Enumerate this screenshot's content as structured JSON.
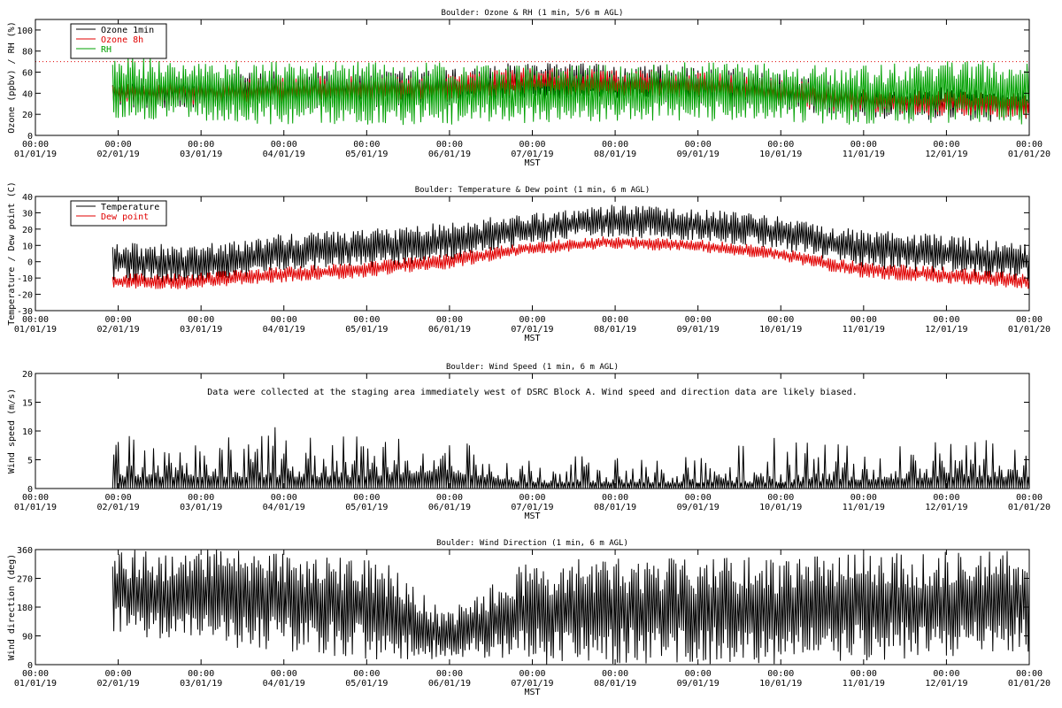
{
  "chart_data": [
    {
      "type": "line",
      "title": "Boulder: Ozone & RH (1 min, 5/6 m AGL)",
      "xlabel": "MST",
      "ylabel": "Ozone (ppbv) / RH (%)",
      "ylim": [
        0,
        110
      ],
      "yticks": [
        0,
        20,
        40,
        60,
        80,
        100
      ],
      "xlim": [
        "01/01/19",
        "01/01/20"
      ],
      "x_tick_labels": [
        [
          "00:00",
          "01/01/19"
        ],
        [
          "00:00",
          "02/01/19"
        ],
        [
          "00:00",
          "03/01/19"
        ],
        [
          "00:00",
          "04/01/19"
        ],
        [
          "00:00",
          "05/01/19"
        ],
        [
          "00:00",
          "06/01/19"
        ],
        [
          "00:00",
          "07/01/19"
        ],
        [
          "00:00",
          "08/01/19"
        ],
        [
          "00:00",
          "09/01/19"
        ],
        [
          "00:00",
          "10/01/19"
        ],
        [
          "00:00",
          "11/01/19"
        ],
        [
          "00:00",
          "12/01/19"
        ],
        [
          "00:00",
          "01/01/20"
        ]
      ],
      "reference_line": {
        "y": 70,
        "style": "dotted",
        "color": "#e00000"
      },
      "legend": {
        "position": "top-left"
      },
      "series": [
        {
          "name": "Ozone 1min",
          "color": "#000000",
          "x": [
            "01/31/19",
            "02/28/19",
            "03/31/19",
            "04/30/19",
            "05/31/19",
            "06/30/19",
            "07/31/19",
            "08/31/19",
            "09/30/19",
            "10/31/19",
            "11/30/19",
            "12/31/19"
          ],
          "y": [
            40,
            41,
            43,
            44,
            45,
            52,
            50,
            48,
            42,
            32,
            30,
            28
          ],
          "spread": [
            14,
            16,
            18,
            18,
            18,
            18,
            18,
            18,
            18,
            16,
            16,
            16
          ]
        },
        {
          "name": "Ozone 8h",
          "color": "#e00000",
          "x": [
            "01/31/19",
            "02/28/19",
            "03/31/19",
            "04/30/19",
            "05/31/19",
            "06/30/19",
            "07/31/19",
            "08/31/19",
            "09/30/19",
            "10/31/19",
            "11/30/19",
            "12/31/19"
          ],
          "y": [
            40,
            41,
            43,
            44,
            45,
            52,
            50,
            48,
            42,
            32,
            30,
            28
          ],
          "spread": [
            10,
            12,
            13,
            13,
            13,
            13,
            13,
            13,
            13,
            12,
            12,
            12
          ]
        },
        {
          "name": "RH",
          "color": "#00a000",
          "x": [
            "01/31/19",
            "02/28/19",
            "03/31/19",
            "04/30/19",
            "05/31/19",
            "06/30/19",
            "07/31/19",
            "08/31/19",
            "09/30/19",
            "10/31/19",
            "11/30/19",
            "12/31/19"
          ],
          "y": [
            45,
            43,
            40,
            40,
            40,
            38,
            40,
            42,
            40,
            38,
            42,
            40
          ],
          "spread": [
            30,
            30,
            30,
            30,
            30,
            28,
            28,
            28,
            28,
            28,
            30,
            30
          ]
        }
      ]
    },
    {
      "type": "line",
      "title": "Boulder: Temperature & Dew point (1 min, 6 m AGL)",
      "xlabel": "MST",
      "ylabel": "Temperature / Dew point (C)",
      "ylim": [
        -30,
        40
      ],
      "yticks": [
        -30,
        -20,
        -10,
        0,
        10,
        20,
        30,
        40
      ],
      "xlim": [
        "01/01/19",
        "01/01/20"
      ],
      "x_tick_labels": [
        [
          "00:00",
          "01/01/19"
        ],
        [
          "00:00",
          "02/01/19"
        ],
        [
          "00:00",
          "03/01/19"
        ],
        [
          "00:00",
          "04/01/19"
        ],
        [
          "00:00",
          "05/01/19"
        ],
        [
          "00:00",
          "06/01/19"
        ],
        [
          "00:00",
          "07/01/19"
        ],
        [
          "00:00",
          "08/01/19"
        ],
        [
          "00:00",
          "09/01/19"
        ],
        [
          "00:00",
          "10/01/19"
        ],
        [
          "00:00",
          "11/01/19"
        ],
        [
          "00:00",
          "12/01/19"
        ],
        [
          "00:00",
          "01/01/20"
        ]
      ],
      "legend": {
        "position": "top-left"
      },
      "series": [
        {
          "name": "Temperature",
          "color": "#000000",
          "x": [
            "01/31/19",
            "02/28/19",
            "03/31/19",
            "04/30/19",
            "05/31/19",
            "06/30/19",
            "07/31/19",
            "08/31/19",
            "09/30/19",
            "10/31/19",
            "11/30/19",
            "12/31/19"
          ],
          "y": [
            0,
            -2,
            5,
            8,
            12,
            20,
            25,
            23,
            18,
            8,
            5,
            0
          ],
          "spread": [
            12,
            12,
            12,
            12,
            12,
            10,
            10,
            10,
            10,
            12,
            12,
            12
          ]
        },
        {
          "name": "Dew point",
          "color": "#e00000",
          "x": [
            "01/31/19",
            "02/28/19",
            "03/31/19",
            "04/30/19",
            "05/31/19",
            "06/30/19",
            "07/31/19",
            "08/31/19",
            "09/30/19",
            "10/31/19",
            "11/30/19",
            "12/31/19"
          ],
          "y": [
            -12,
            -12,
            -8,
            -5,
            0,
            8,
            12,
            10,
            5,
            -5,
            -8,
            -12
          ],
          "spread": [
            5,
            5,
            5,
            5,
            5,
            4,
            4,
            4,
            4,
            5,
            5,
            5
          ]
        }
      ]
    },
    {
      "type": "line",
      "title": "Boulder: Wind Speed (1 min, 6 m AGL)",
      "xlabel": "MST",
      "ylabel": "Wind speed (m/s)",
      "ylim": [
        0,
        20
      ],
      "yticks": [
        0,
        5,
        10,
        15,
        20
      ],
      "xlim": [
        "01/01/19",
        "01/01/20"
      ],
      "x_tick_labels": [
        [
          "00:00",
          "01/01/19"
        ],
        [
          "00:00",
          "02/01/19"
        ],
        [
          "00:00",
          "03/01/19"
        ],
        [
          "00:00",
          "04/01/19"
        ],
        [
          "00:00",
          "05/01/19"
        ],
        [
          "00:00",
          "06/01/19"
        ],
        [
          "00:00",
          "07/01/19"
        ],
        [
          "00:00",
          "08/01/19"
        ],
        [
          "00:00",
          "09/01/19"
        ],
        [
          "00:00",
          "10/01/19"
        ],
        [
          "00:00",
          "11/01/19"
        ],
        [
          "00:00",
          "12/01/19"
        ],
        [
          "00:00",
          "01/01/20"
        ]
      ],
      "annotation": "Data were collected at the staging area immediately west of DSRC Block A. Wind speed and direction data are likely biased.",
      "series": [
        {
          "color": "#000000",
          "x": [
            "01/31/19",
            "02/28/19",
            "03/31/19",
            "04/30/19",
            "05/31/19",
            "06/30/19",
            "07/31/19",
            "08/31/19",
            "09/30/19",
            "10/31/19",
            "11/30/19",
            "12/31/19"
          ],
          "y": [
            2,
            2,
            2,
            2,
            3,
            1,
            1,
            1,
            1,
            1.5,
            2,
            2
          ],
          "max": [
            12,
            8,
            11,
            9,
            10,
            5,
            6,
            6,
            9,
            8,
            9,
            8
          ]
        }
      ]
    },
    {
      "type": "line",
      "title": "Boulder: Wind Direction (1 min, 6 m AGL)",
      "xlabel": "MST",
      "ylabel": "Wind direction (deg)",
      "ylim": [
        0,
        360
      ],
      "yticks": [
        0,
        90,
        180,
        270,
        360
      ],
      "xlim": [
        "01/01/19",
        "01/01/20"
      ],
      "x_tick_labels": [
        [
          "00:00",
          "01/01/19"
        ],
        [
          "00:00",
          "02/01/19"
        ],
        [
          "00:00",
          "03/01/19"
        ],
        [
          "00:00",
          "04/01/19"
        ],
        [
          "00:00",
          "05/01/19"
        ],
        [
          "00:00",
          "06/01/19"
        ],
        [
          "00:00",
          "07/01/19"
        ],
        [
          "00:00",
          "08/01/19"
        ],
        [
          "00:00",
          "09/01/19"
        ],
        [
          "00:00",
          "10/01/19"
        ],
        [
          "00:00",
          "11/01/19"
        ],
        [
          "00:00",
          "12/01/19"
        ],
        [
          "00:00",
          "01/01/20"
        ]
      ],
      "series": [
        {
          "color": "#000000",
          "x": [
            "01/31/19",
            "02/28/19",
            "03/31/19",
            "04/30/19",
            "05/15/19",
            "05/31/19",
            "06/30/19",
            "07/31/19",
            "08/31/19",
            "09/30/19",
            "10/31/19",
            "11/30/19",
            "12/31/19"
          ],
          "y": [
            230,
            210,
            200,
            180,
            150,
            90,
            160,
            170,
            170,
            170,
            180,
            190,
            200
          ],
          "spread": [
            130,
            150,
            160,
            160,
            150,
            70,
            160,
            170,
            170,
            170,
            170,
            170,
            160
          ]
        }
      ]
    }
  ]
}
